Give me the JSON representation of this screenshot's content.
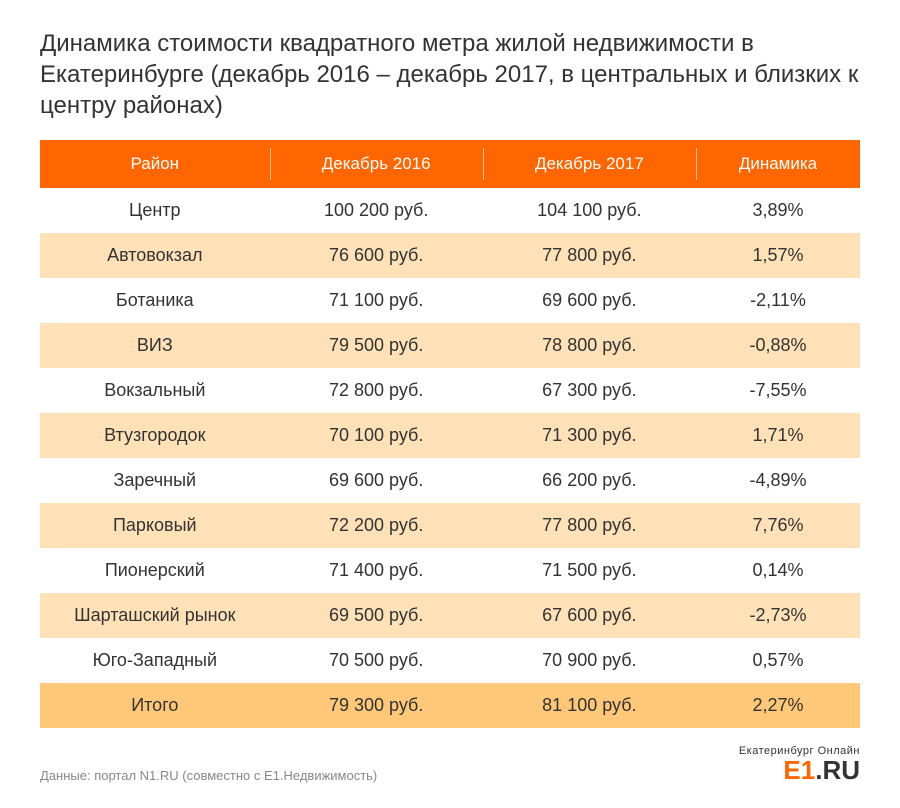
{
  "title": "Динамика стоимости квадратного метра жилой недвижимости в Екатеринбурге (декабрь 2016 – декабрь 2017, в центральных и близких к центру районах)",
  "colors": {
    "header_bg": "#ff6600",
    "header_text": "#ffffff",
    "row_even_bg": "#ffffff",
    "row_odd_bg": "#ffe1b8",
    "row_total_bg": "#ffc878",
    "text": "#333333",
    "source_text": "#888888"
  },
  "table": {
    "type": "table",
    "columns": [
      "Район",
      "Декабрь 2016",
      "Декабрь 2017",
      "Динамика"
    ],
    "col_widths_pct": [
      28,
      26,
      26,
      20
    ],
    "header_fontsize": 17,
    "cell_fontsize": 18,
    "rows": [
      {
        "district": "Центр",
        "p2016": "100 200 руб.",
        "p2017": "104 100 руб.",
        "dyn": "3,89%"
      },
      {
        "district": "Автовокзал",
        "p2016": "76 600 руб.",
        "p2017": "77 800 руб.",
        "dyn": "1,57%"
      },
      {
        "district": "Ботаника",
        "p2016": "71 100 руб.",
        "p2017": "69 600 руб.",
        "dyn": "-2,11%"
      },
      {
        "district": "ВИЗ",
        "p2016": "79 500 руб.",
        "p2017": "78 800 руб.",
        "dyn": "-0,88%"
      },
      {
        "district": "Вокзальный",
        "p2016": "72 800 руб.",
        "p2017": "67 300 руб.",
        "dyn": "-7,55%"
      },
      {
        "district": "Втузгородок",
        "p2016": "70 100 руб.",
        "p2017": "71 300 руб.",
        "dyn": "1,71%"
      },
      {
        "district": "Заречный",
        "p2016": "69 600 руб.",
        "p2017": "66 200 руб.",
        "dyn": "-4,89%"
      },
      {
        "district": "Парковый",
        "p2016": "72 200 руб.",
        "p2017": "77 800 руб.",
        "dyn": "7,76%"
      },
      {
        "district": "Пионерский",
        "p2016": "71 400 руб.",
        "p2017": "71 500 руб.",
        "dyn": "0,14%"
      },
      {
        "district": "Шарташский рынок",
        "p2016": "69 500 руб.",
        "p2017": "67 600 руб.",
        "dyn": "-2,73%"
      },
      {
        "district": "Юго-Западный",
        "p2016": "70 500 руб.",
        "p2017": "70 900 руб.",
        "dyn": "0,57%"
      }
    ],
    "total": {
      "district": "Итого",
      "p2016": "79 300 руб.",
      "p2017": "81 100 руб.",
      "dyn": "2,27%"
    }
  },
  "source": "Данные: портал N1.RU (совместно с Е1.Недвижимость)",
  "logo": {
    "top": "Екатеринбург Онлайн",
    "e1": "E1",
    "ru": ".RU"
  }
}
